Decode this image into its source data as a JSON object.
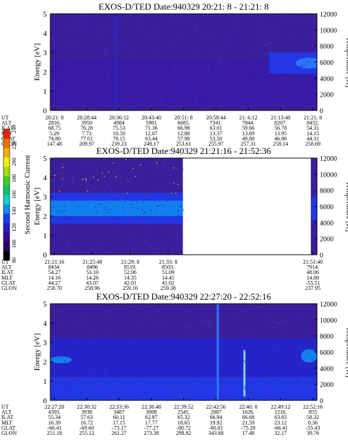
{
  "colorbar": {
    "label": "Second Harmonic Current",
    "ticks": [
      "80",
      "100",
      "120",
      "140",
      "160",
      "180",
      "200",
      "220",
      "240"
    ],
    "colors": [
      "#000000",
      "#2a0060",
      "#3a0a8c",
      "#1e1ec8",
      "#1f3cf0",
      "#0f8cf0",
      "#10d2c8",
      "#10c070",
      "#3cd020",
      "#a0e010",
      "#f0f000",
      "#f0b000",
      "#f07000",
      "#e82000"
    ]
  },
  "chart_data": [
    {
      "type": "heatmap",
      "title": "EXOS-D/TED   Date:940329  20:21: 8 - 21:21: 8",
      "ylabel": "Energy [eV]",
      "ylim": [
        0,
        5
      ],
      "yticks": [
        "0",
        "1",
        "2",
        "3",
        "4",
        "5"
      ],
      "y2label": "Temperature [K]",
      "y2lim": [
        0,
        12000
      ],
      "y2ticks": [
        "0",
        "2000",
        "4000",
        "6000",
        "8000",
        "10000",
        "12000"
      ],
      "data_extent": [
        0,
        1
      ],
      "ephemeris": {
        "rows": [
          "UT",
          "ALT",
          "ILAT",
          "MLT",
          "GLAT",
          "GLON"
        ],
        "columns": [
          [
            "20:21: 8",
            "2816.",
            "68.75",
            "5.29",
            "74.80",
            "147.48"
          ],
          [
            "20:28:44",
            "3950",
            "76.28",
            "7.73",
            "77.01",
            "209.97"
          ],
          [
            "20:36:12",
            "4984",
            "75.53",
            "10.50",
            "70.15",
            "239.23"
          ],
          [
            "20:43:40",
            "5901",
            "71.36",
            "12.07",
            "63.44",
            "249.17"
          ],
          [
            "20:51: 8",
            "6685.",
            "66.98",
            "12.88",
            "57.98",
            "253.61"
          ],
          [
            "20:58:44",
            "7341.",
            "63.01",
            "13.37",
            "53.50",
            "255.97"
          ],
          [
            "21: 6:12",
            "7844.",
            "59.66",
            "13.69",
            "49.88",
            "257.31"
          ],
          [
            "21:13:40",
            "8207.",
            "56.78",
            "13.95",
            "46.86",
            "258.14"
          ],
          [
            "21:21: 8",
            "8432.",
            "54.31",
            "14.15",
            "44.31",
            "258.69"
          ]
        ]
      },
      "features": [
        {
          "kind": "band",
          "x0": 0.0,
          "x1": 1.0,
          "y0": 0.3,
          "y1": 2.6,
          "color": "#3a1aa8"
        },
        {
          "kind": "band",
          "x0": 0.82,
          "x1": 1.0,
          "y0": 1.9,
          "y1": 3.0,
          "color": "#1f3cf0"
        },
        {
          "kind": "spot",
          "cx": 0.97,
          "cy": 2.45,
          "rx": 0.05,
          "ry": 0.28,
          "color": "#2b7bff"
        },
        {
          "kind": "vline",
          "x": 0.245,
          "y0": 0.0,
          "y1": 5.0,
          "color": "#2e24c0"
        }
      ]
    },
    {
      "type": "heatmap",
      "title": "EXOS-D/TED   Date:940329  21:21:16 - 21:52:36",
      "ylabel": "Energy [eV]",
      "ylim": [
        0,
        5
      ],
      "yticks": [
        "0",
        "1",
        "2",
        "3",
        "4",
        "5"
      ],
      "y2label": "Temperature [K]",
      "y2lim": [
        0,
        12000
      ],
      "y2ticks": [
        "0",
        "2000",
        "4000",
        "6000",
        "8000",
        "10000",
        "12000"
      ],
      "data_extent": [
        0,
        0.497
      ],
      "data_extent2": [
        0.977,
        1
      ],
      "ephemeris": {
        "rows": [
          "UT",
          "ALT",
          "ILAT",
          "MLT",
          "GLAT",
          "GLON"
        ],
        "columns": [
          [
            "21:21:16",
            "8434.",
            "54.27",
            "14.16",
            "44.27",
            "258.70"
          ],
          [
            "21:25:48",
            "8496",
            "53.10",
            "14.26",
            "43.07",
            "258.96"
          ],
          [
            "21:29: 8",
            "8519.",
            "52.06",
            "14.35",
            "42.01",
            "259.16"
          ],
          [
            "21:33: 8",
            "8503.",
            "51.09",
            "14.45",
            "41.02",
            "259.38"
          ],
          [
            "21:51:40",
            "7914.",
            "48.06",
            "14.88",
            "-55.51",
            "237.95"
          ]
        ]
      },
      "features": [
        {
          "kind": "band",
          "x0": 0.0,
          "x1": 0.497,
          "y0": 1.6,
          "y1": 3.2,
          "color": "#1f3cf0"
        },
        {
          "kind": "band",
          "x0": 0.0,
          "x1": 0.497,
          "y0": 2.0,
          "y1": 2.8,
          "color": "#0f8cf0"
        },
        {
          "kind": "band",
          "x0": 0.977,
          "x1": 1.0,
          "y0": 1.8,
          "y1": 3.0,
          "color": "#1f3cf0"
        }
      ]
    },
    {
      "type": "heatmap",
      "title": "EXOS-D/TED   Date:940329  22:27:20 - 22:52:16",
      "ylabel": "Energy [eV]",
      "ylim": [
        0,
        5
      ],
      "yticks": [
        "0",
        "1",
        "2",
        "3",
        "4",
        "5"
      ],
      "y2label": "Temperature [K]",
      "y2lim": [
        0,
        12000
      ],
      "y2ticks": [
        "0",
        "2000",
        "4000",
        "6000",
        "8000",
        "10000",
        "12000"
      ],
      "data_extent": [
        0,
        1
      ],
      "ephemeris": {
        "rows": [
          "UT",
          "ALT",
          "ILAT",
          "MLT",
          "GLAT",
          "GLON"
        ],
        "columns": [
          [
            "22:27:20",
            "4393.",
            "55.34",
            "16.39",
            "-66.41",
            "251.18"
          ],
          [
            "22:30:32",
            "3938",
            "57.63",
            "16.72",
            "-69.60",
            "255.12"
          ],
          [
            "22:33:36",
            "3487",
            "60.11",
            "17.15",
            "-73.17",
            "261.27"
          ],
          [
            "22:36:48",
            "3008",
            "62.87",
            "17.77",
            "-77.27",
            "273.38"
          ],
          [
            "22:39:52",
            "2545.",
            "65.32",
            "18.65",
            "-80.72",
            "298.82"
          ],
          [
            "22:42:56",
            "2087",
            "66.94",
            "19.92",
            "-80.81",
            "343.68"
          ],
          [
            "22:46: 8",
            "1626.",
            "66.68",
            "21.59",
            "-75.20",
            "17.48"
          ],
          [
            "22:49:12",
            "1216.",
            "63.83",
            "23.12",
            "-66.41",
            "32.17"
          ],
          [
            "22:52:16",
            "855",
            "58.32",
            "0.36",
            "-55.43",
            "39.76"
          ]
        ]
      },
      "features": [
        {
          "kind": "band",
          "x0": 0.0,
          "x1": 1.0,
          "y0": 0.0,
          "y1": 1.2,
          "color": "#1f3cf0"
        },
        {
          "kind": "band",
          "x0": 0.0,
          "x1": 1.0,
          "y0": 1.2,
          "y1": 3.2,
          "color": "#2226d0"
        },
        {
          "kind": "spot",
          "cx": 0.04,
          "cy": 2.1,
          "rx": 0.04,
          "ry": 0.18,
          "color": "#0f8cf0"
        },
        {
          "kind": "spot",
          "cx": 0.97,
          "cy": 2.3,
          "rx": 0.03,
          "ry": 0.35,
          "color": "#0f8cf0"
        },
        {
          "kind": "vline",
          "x": 0.628,
          "y0": 0.0,
          "y1": 5.0,
          "color": "#2b7bff"
        },
        {
          "kind": "vline",
          "x": 0.728,
          "y0": 0.2,
          "y1": 2.6,
          "color": "#7dd8ff"
        }
      ]
    }
  ]
}
